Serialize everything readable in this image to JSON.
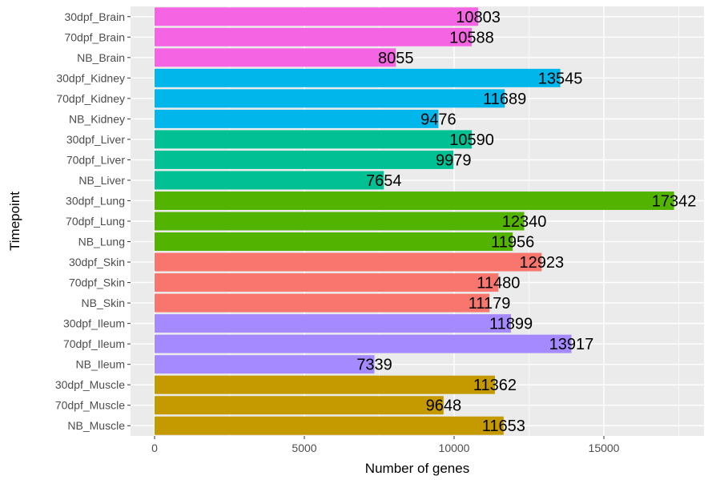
{
  "chart_data": {
    "type": "bar",
    "orientation": "horizontal",
    "xlabel": "Number of genes",
    "ylabel": "Timepoint",
    "xlim": [
      0,
      17800
    ],
    "x_ticks": [
      0,
      5000,
      10000,
      15000
    ],
    "x_tick_labels": [
      "0",
      "5000",
      "10000",
      "15000"
    ],
    "grid": true,
    "legend": "none",
    "categories": [
      "30dpf_Brain",
      "70dpf_Brain",
      "NB_Brain",
      "30dpf_Kidney",
      "70dpf_Kidney",
      "NB_Kidney",
      "30dpf_Liver",
      "70dpf_Liver",
      "NB_Liver",
      "30dpf_Lung",
      "70dpf_Lung",
      "NB_Lung",
      "30dpf_Skin",
      "70dpf_Skin",
      "NB_Skin",
      "30dpf_Ileum",
      "70dpf_Ileum",
      "NB_Ileum",
      "30dpf_Muscle",
      "70dpf_Muscle",
      "NB_Muscle"
    ],
    "values": [
      10803,
      10588,
      8055,
      13545,
      11689,
      9476,
      10590,
      9979,
      7654,
      17342,
      12340,
      11956,
      12923,
      11480,
      11179,
      11899,
      13917,
      7339,
      11362,
      9648,
      11653
    ],
    "value_labels": [
      "10803",
      "10588",
      "8055",
      "13545",
      "11689",
      "9476",
      "10590",
      "9979",
      "7654",
      "17342",
      "12340",
      "11956",
      "12923",
      "11480",
      "11179",
      "11899",
      "13917",
      "7339",
      "11362",
      "9648",
      "11653"
    ],
    "colors": [
      "#f564e3",
      "#f564e3",
      "#f564e3",
      "#00b6eb",
      "#00b6eb",
      "#00b6eb",
      "#00c094",
      "#00c094",
      "#00c094",
      "#53b400",
      "#53b400",
      "#53b400",
      "#f8766d",
      "#f8766d",
      "#f8766d",
      "#a58aff",
      "#a58aff",
      "#a58aff",
      "#c49a00",
      "#c49a00",
      "#c49a00"
    ],
    "panel_background": "#ebebeb",
    "grid_color": "#ffffff"
  }
}
